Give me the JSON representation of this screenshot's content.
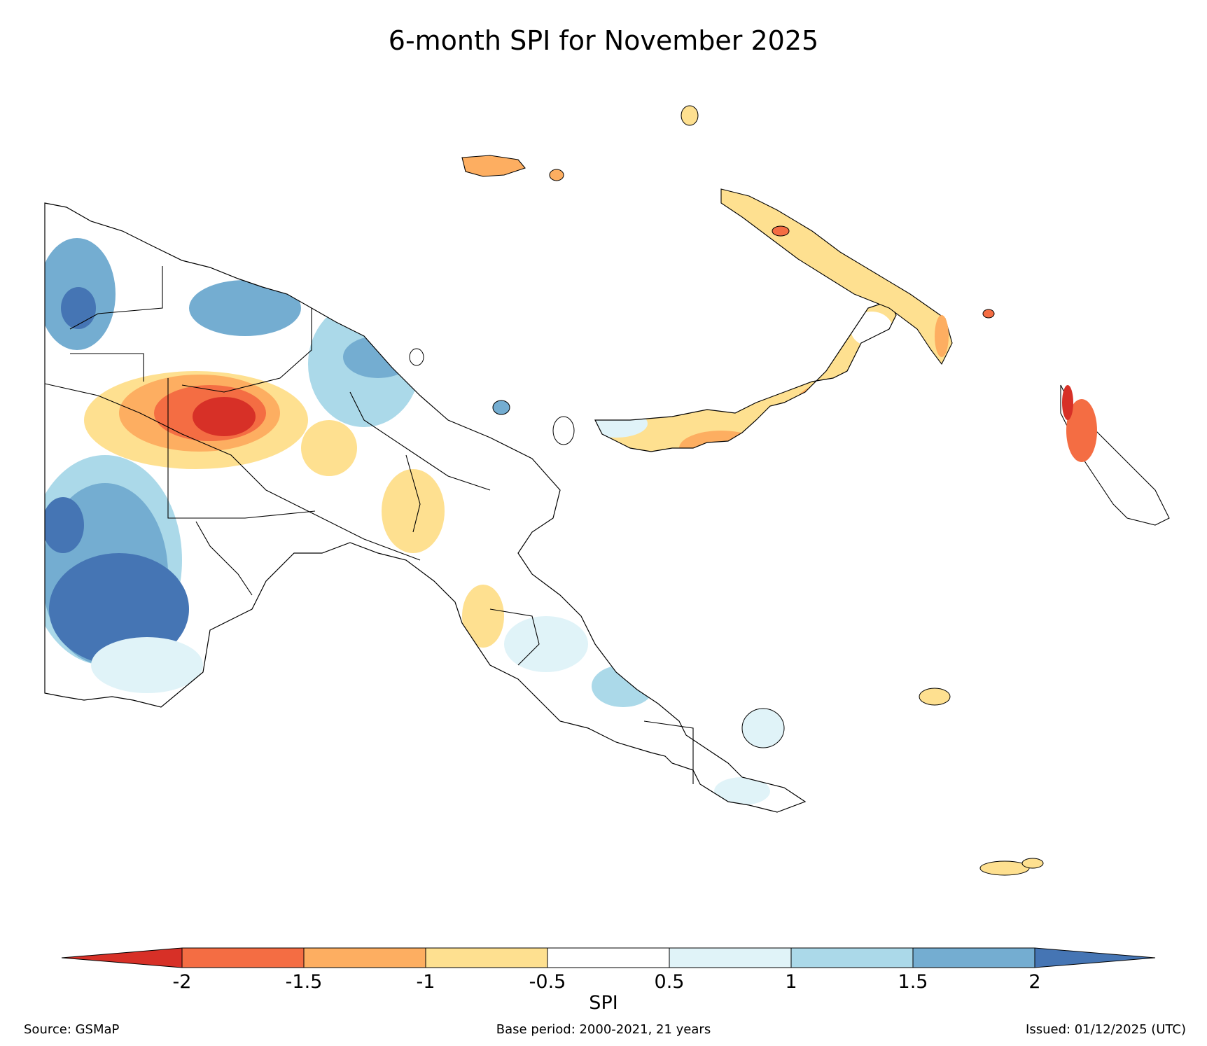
{
  "title": "6-month SPI for November 2025",
  "colorbar": {
    "label": "SPI",
    "ticks": [
      "-2",
      "-1.5",
      "-1",
      "-0.5",
      "0.5",
      "1",
      "1.5",
      "2"
    ],
    "tick_values": [
      -2,
      -1.5,
      -1,
      -0.5,
      0.5,
      1,
      1.5,
      2
    ],
    "colors": [
      "#d73027",
      "#f46d43",
      "#fdae61",
      "#fee090",
      "#ffffff",
      "#e0f3f8",
      "#abd9e9",
      "#74add1",
      "#4575b4"
    ]
  },
  "footer": {
    "source": "Source: GSMaP",
    "base_period": "Base period: 2000-2021, 21 years",
    "issued": "Issued: 01/12/2025 (UTC)"
  }
}
